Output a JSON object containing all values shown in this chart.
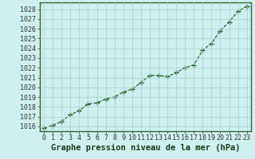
{
  "x": [
    0,
    1,
    2,
    3,
    4,
    5,
    6,
    7,
    8,
    9,
    10,
    11,
    12,
    13,
    14,
    15,
    16,
    17,
    18,
    19,
    20,
    21,
    22,
    23
  ],
  "y": [
    1015.8,
    1016.1,
    1016.5,
    1017.2,
    1017.6,
    1018.3,
    1018.4,
    1018.8,
    1019.0,
    1019.5,
    1019.8,
    1020.5,
    1021.2,
    1021.2,
    1021.1,
    1021.5,
    1022.0,
    1022.3,
    1023.8,
    1024.5,
    1025.8,
    1026.7,
    1027.8,
    1028.3
  ],
  "line_color": "#1a5c1a",
  "marker": "+",
  "bg_color": "#cff0f0",
  "grid_color": "#aacece",
  "title": "Graphe pression niveau de la mer (hPa)",
  "ylim_min": 1015.5,
  "ylim_max": 1028.7,
  "xlim_min": -0.5,
  "xlim_max": 23.5,
  "yticks": [
    1016,
    1017,
    1018,
    1019,
    1020,
    1021,
    1022,
    1023,
    1024,
    1025,
    1026,
    1027,
    1028
  ],
  "xticks": [
    0,
    1,
    2,
    3,
    4,
    5,
    6,
    7,
    8,
    9,
    10,
    11,
    12,
    13,
    14,
    15,
    16,
    17,
    18,
    19,
    20,
    21,
    22,
    23
  ],
  "title_fontsize": 7.5,
  "tick_fontsize": 6.0,
  "linewidth": 0.8,
  "markersize": 4.5,
  "spine_color": "#336633"
}
